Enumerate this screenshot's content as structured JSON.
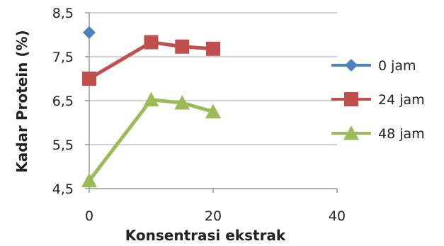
{
  "chart_data": {
    "type": "line",
    "title": "",
    "xlabel": "Konsentrasi ekstrak",
    "ylabel": "Kadar Protein (%)",
    "xlim": [
      0,
      40
    ],
    "ylim": [
      4.5,
      8.5
    ],
    "x_ticks": [
      "0",
      "20",
      "40"
    ],
    "y_ticks": [
      "4,5",
      "5,5",
      "6,5",
      "7,5",
      "8,5"
    ],
    "grid": "horizontal",
    "legend_position": "right",
    "series": [
      {
        "name": "0 jam",
        "color": "#4F81BD",
        "marker": "diamond",
        "x": [
          0
        ],
        "y": [
          8.05
        ]
      },
      {
        "name": "24 jam",
        "color": "#C0504D",
        "marker": "square",
        "x": [
          0,
          10,
          15,
          20
        ],
        "y": [
          7.0,
          7.83,
          7.73,
          7.68
        ]
      },
      {
        "name": "48 jam",
        "color": "#9BBB59",
        "marker": "triangle",
        "x": [
          0,
          10,
          15,
          20
        ],
        "y": [
          4.68,
          6.52,
          6.45,
          6.25
        ]
      }
    ]
  }
}
